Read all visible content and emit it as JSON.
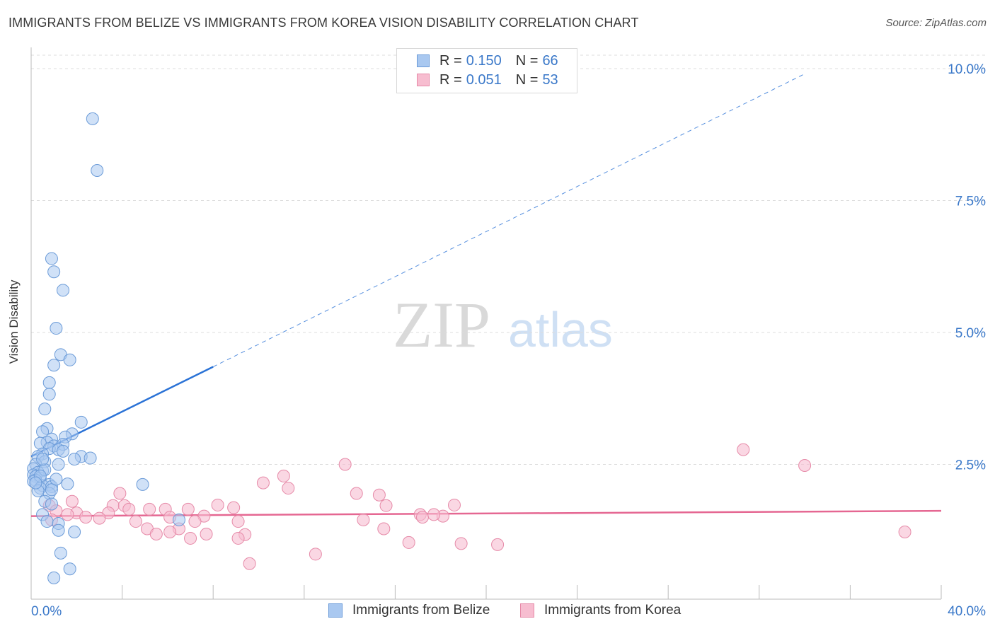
{
  "header": {
    "title": "IMMIGRANTS FROM BELIZE VS IMMIGRANTS FROM KOREA VISION DISABILITY CORRELATION CHART",
    "source": "Source: ZipAtlas.com"
  },
  "watermark": {
    "zip": "ZIP",
    "atlas": "atlas"
  },
  "legend_stats": [
    {
      "r_label": "R =",
      "r_value": "0.150",
      "n_label": "N =",
      "n_value": "66"
    },
    {
      "r_label": "R =",
      "r_value": "0.051",
      "n_label": "N =",
      "n_value": "53"
    }
  ],
  "colors": {
    "belize_fill": "#a9c8f0",
    "belize_stroke": "#6b9bd8",
    "belize_line": "#2a72d6",
    "korea_fill": "#f7bdd0",
    "korea_stroke": "#e68aa8",
    "korea_line": "#e56792",
    "accent_text": "#3a78c9"
  },
  "chart_data": {
    "type": "scatter",
    "title": "IMMIGRANTS FROM BELIZE VS IMMIGRANTS FROM KOREA VISION DISABILITY CORRELATION CHART",
    "xlabel": "",
    "ylabel": "Vision Disability",
    "xlim": [
      0,
      40
    ],
    "ylim": [
      0,
      10.5
    ],
    "x_ticks": [
      0,
      4,
      8,
      12,
      16,
      20,
      24,
      28,
      32,
      36,
      40
    ],
    "x_tick_labels": {
      "0": "0.0%",
      "40": "40.0%"
    },
    "y_ticks": [
      2.5,
      5.0,
      7.5,
      10.0
    ],
    "y_tick_labels": [
      "2.5%",
      "5.0%",
      "7.5%",
      "10.0%"
    ],
    "grid": "horizontal dashed",
    "legend_position": "top-center",
    "series": [
      {
        "name": "Immigrants from Belize",
        "R": 0.15,
        "N": 66,
        "trend": {
          "x": [
            0,
            8.0
          ],
          "y": [
            2.65,
            4.35
          ],
          "dashed_to": [
            34.0,
            9.9
          ]
        },
        "points": [
          [
            2.7,
            9.05
          ],
          [
            2.9,
            8.07
          ],
          [
            0.9,
            6.4
          ],
          [
            1.0,
            6.15
          ],
          [
            1.4,
            5.8
          ],
          [
            1.1,
            5.08
          ],
          [
            1.3,
            4.58
          ],
          [
            1.7,
            4.48
          ],
          [
            1.0,
            4.38
          ],
          [
            0.8,
            4.05
          ],
          [
            0.8,
            3.83
          ],
          [
            0.6,
            3.55
          ],
          [
            2.2,
            3.3
          ],
          [
            0.7,
            3.18
          ],
          [
            0.5,
            3.12
          ],
          [
            1.8,
            3.08
          ],
          [
            0.9,
            2.98
          ],
          [
            1.5,
            3.02
          ],
          [
            0.7,
            2.92
          ],
          [
            0.4,
            2.9
          ],
          [
            1.0,
            2.85
          ],
          [
            1.4,
            2.88
          ],
          [
            0.8,
            2.8
          ],
          [
            1.2,
            2.78
          ],
          [
            1.4,
            2.75
          ],
          [
            0.5,
            2.7
          ],
          [
            0.3,
            2.65
          ],
          [
            2.2,
            2.65
          ],
          [
            2.6,
            2.62
          ],
          [
            1.9,
            2.6
          ],
          [
            0.6,
            2.55
          ],
          [
            0.2,
            2.5
          ],
          [
            1.2,
            2.5
          ],
          [
            0.1,
            2.42
          ],
          [
            0.5,
            2.38
          ],
          [
            0.3,
            2.35
          ],
          [
            0.1,
            2.3
          ],
          [
            0.2,
            2.27
          ],
          [
            0.4,
            2.24
          ],
          [
            0.2,
            2.2
          ],
          [
            0.1,
            2.18
          ],
          [
            0.8,
            2.12
          ],
          [
            1.6,
            2.13
          ],
          [
            0.5,
            2.1
          ],
          [
            0.9,
            2.08
          ],
          [
            4.9,
            2.12
          ],
          [
            0.4,
            2.05
          ],
          [
            0.3,
            2.0
          ],
          [
            0.8,
            1.95
          ],
          [
            0.6,
            1.8
          ],
          [
            0.9,
            1.75
          ],
          [
            0.5,
            1.55
          ],
          [
            6.5,
            1.45
          ],
          [
            0.7,
            1.42
          ],
          [
            1.2,
            1.38
          ],
          [
            1.2,
            1.25
          ],
          [
            1.9,
            1.22
          ],
          [
            1.3,
            0.82
          ],
          [
            1.7,
            0.52
          ],
          [
            1.0,
            0.35
          ],
          [
            0.6,
            2.4
          ],
          [
            0.4,
            2.28
          ],
          [
            0.9,
            2.02
          ],
          [
            0.2,
            2.15
          ],
          [
            1.1,
            2.22
          ],
          [
            0.5,
            2.6
          ]
        ]
      },
      {
        "name": "Immigrants from Korea",
        "R": 0.051,
        "N": 53,
        "trend": {
          "x": [
            0,
            40
          ],
          "y": [
            1.52,
            1.62
          ]
        },
        "points": [
          [
            31.3,
            2.78
          ],
          [
            34.0,
            2.48
          ],
          [
            13.8,
            2.5
          ],
          [
            11.1,
            2.28
          ],
          [
            10.2,
            2.15
          ],
          [
            11.3,
            2.05
          ],
          [
            15.3,
            1.92
          ],
          [
            3.9,
            1.95
          ],
          [
            14.3,
            1.95
          ],
          [
            1.8,
            1.8
          ],
          [
            0.8,
            1.72
          ],
          [
            3.6,
            1.72
          ],
          [
            4.1,
            1.72
          ],
          [
            8.2,
            1.73
          ],
          [
            8.9,
            1.68
          ],
          [
            15.6,
            1.72
          ],
          [
            18.6,
            1.73
          ],
          [
            4.3,
            1.65
          ],
          [
            5.2,
            1.65
          ],
          [
            5.9,
            1.65
          ],
          [
            6.9,
            1.65
          ],
          [
            1.1,
            1.62
          ],
          [
            2.0,
            1.58
          ],
          [
            3.4,
            1.58
          ],
          [
            17.1,
            1.55
          ],
          [
            17.2,
            1.5
          ],
          [
            18.1,
            1.52
          ],
          [
            1.6,
            1.55
          ],
          [
            2.4,
            1.5
          ],
          [
            6.1,
            1.5
          ],
          [
            7.6,
            1.52
          ],
          [
            0.9,
            1.45
          ],
          [
            3.0,
            1.48
          ],
          [
            7.2,
            1.42
          ],
          [
            14.6,
            1.45
          ],
          [
            4.6,
            1.42
          ],
          [
            9.1,
            1.42
          ],
          [
            17.7,
            1.55
          ],
          [
            5.1,
            1.28
          ],
          [
            6.5,
            1.28
          ],
          [
            15.5,
            1.28
          ],
          [
            6.1,
            1.22
          ],
          [
            7.7,
            1.18
          ],
          [
            9.4,
            1.17
          ],
          [
            5.5,
            1.18
          ],
          [
            7.0,
            1.1
          ],
          [
            9.1,
            1.1
          ],
          [
            38.4,
            1.22
          ],
          [
            16.6,
            1.02
          ],
          [
            20.5,
            0.98
          ],
          [
            18.9,
            1.0
          ],
          [
            12.5,
            0.8
          ],
          [
            9.6,
            0.62
          ]
        ]
      }
    ]
  },
  "y_axis_label": "Vision Disability",
  "x_tick_label_left": "0.0%",
  "x_tick_label_right": "40.0%",
  "bottom_legend": [
    "Immigrants from Belize",
    "Immigrants from Korea"
  ]
}
